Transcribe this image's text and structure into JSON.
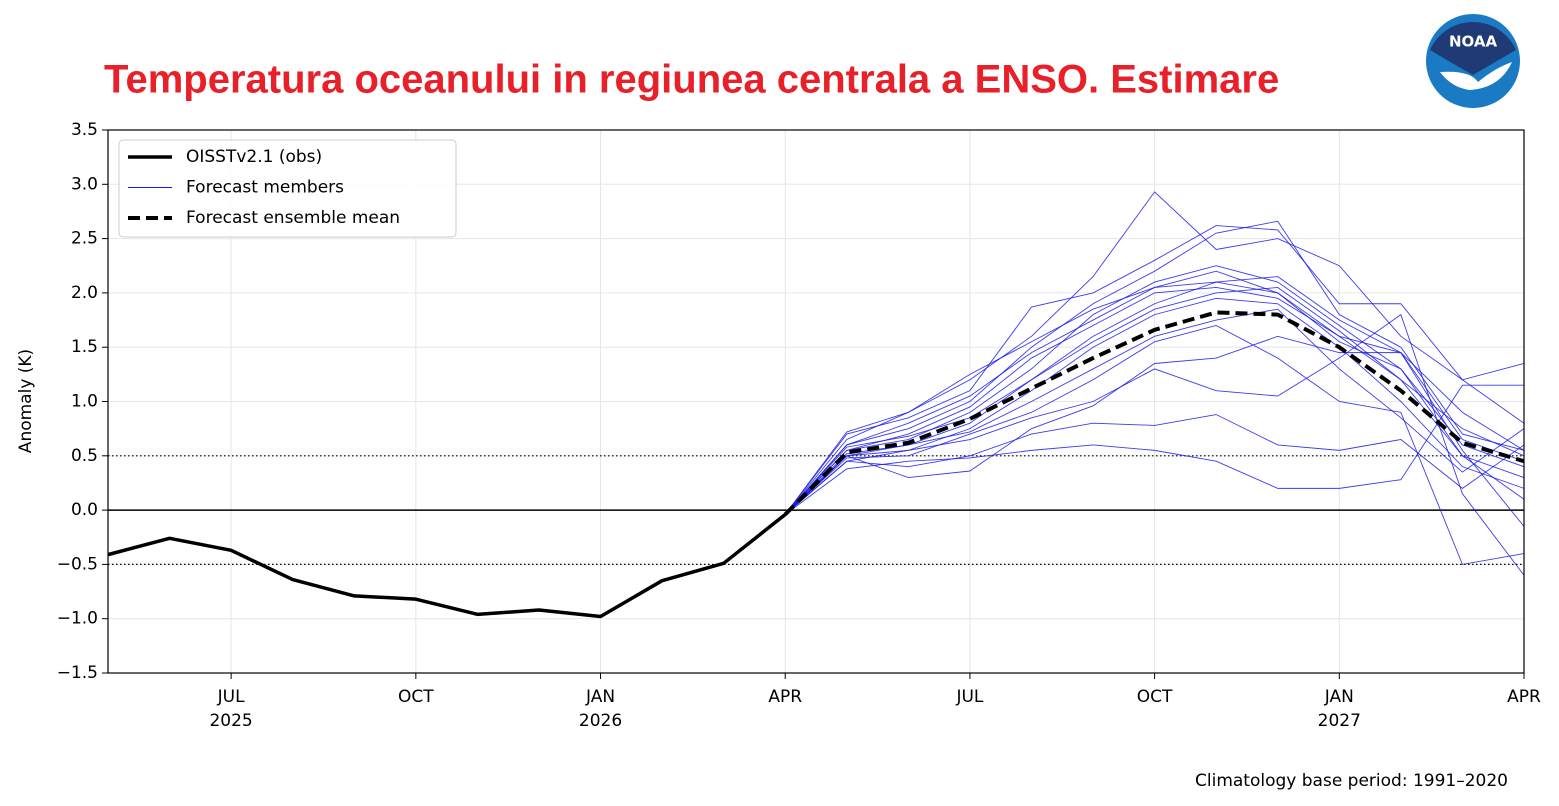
{
  "chart_data": {
    "type": "line",
    "title": "Temperatura oceanului in regiunea centrala a ENSO. Estimare",
    "ylabel": "Anomaly (K)",
    "note": "Climatology base period: 1991–2020",
    "logo_text": "NOAA",
    "categories": [
      null,
      null,
      "JUL\n2025",
      null,
      null,
      "OCT",
      null,
      null,
      "JAN\n2026",
      null,
      null,
      "APR",
      null,
      null,
      "JUL",
      null,
      null,
      "OCT",
      null,
      null,
      "JAN\n2027",
      null,
      null,
      "APR"
    ],
    "ylim": [
      -1.5,
      3.5
    ],
    "yticks": [
      {
        "value": -1.5,
        "label": "−1.5"
      },
      {
        "value": -1.0,
        "label": "−1.0"
      },
      {
        "value": -0.5,
        "label": "−0.5"
      },
      {
        "value": 0,
        "label": "0.0"
      },
      0.5,
      {
        "value": 1.0,
        "label": "1.0"
      },
      1.5,
      {
        "value": 2.0,
        "label": "2.0"
      },
      2.5,
      {
        "value": 3.0,
        "label": "3.0"
      },
      3.5
    ],
    "grid": true,
    "legend": "upper left",
    "reference_lines": [
      {
        "value": 0,
        "style": "solid"
      },
      {
        "value": 0.5,
        "style": "dotted"
      },
      {
        "value": -0.5,
        "style": "dotted"
      }
    ],
    "series": [
      {
        "name": "OISSTv2.1 (obs)",
        "color": "#000000",
        "style": "solid",
        "width": 3.5,
        "values": [
          -0.41,
          -0.26,
          -0.37,
          -0.64,
          -0.79,
          -0.82,
          -0.96,
          -0.92,
          -0.98,
          -0.65,
          -0.49,
          -0.04,
          null,
          null,
          null,
          null,
          null,
          null,
          null,
          null,
          null,
          null,
          null,
          null
        ]
      },
      {
        "name": "Forecast ensemble mean",
        "color": "#000000",
        "style": "dashed",
        "width": 4,
        "values": [
          null,
          null,
          null,
          null,
          null,
          null,
          null,
          null,
          null,
          null,
          null,
          -0.04,
          0.53,
          0.62,
          0.84,
          1.12,
          1.4,
          1.66,
          1.82,
          1.8,
          1.5,
          1.1,
          0.62,
          0.45
        ]
      }
    ],
    "members": {
      "name": "Forecast members",
      "color": "#1a1ae6",
      "values": [
        [
          null,
          null,
          null,
          null,
          null,
          null,
          null,
          null,
          null,
          null,
          null,
          -0.04,
          0.72,
          0.9,
          1.2,
          1.6,
          2.15,
          2.93,
          2.4,
          2.5,
          2.25,
          1.6,
          1.2,
          1.35
        ],
        [
          null,
          null,
          null,
          null,
          null,
          null,
          null,
          null,
          null,
          null,
          null,
          -0.04,
          0.7,
          0.85,
          1.1,
          1.87,
          2.0,
          2.3,
          2.62,
          2.58,
          1.9,
          1.9,
          1.2,
          0.8
        ],
        [
          null,
          null,
          null,
          null,
          null,
          null,
          null,
          null,
          null,
          null,
          null,
          -0.04,
          0.6,
          0.75,
          1.0,
          1.5,
          1.9,
          2.2,
          2.55,
          2.66,
          1.8,
          1.5,
          0.7,
          0.55
        ],
        [
          null,
          null,
          null,
          null,
          null,
          null,
          null,
          null,
          null,
          null,
          null,
          -0.04,
          0.55,
          0.65,
          0.9,
          1.3,
          1.8,
          2.1,
          2.25,
          2.1,
          1.7,
          1.3,
          0.6,
          0.4
        ],
        [
          null,
          null,
          null,
          null,
          null,
          null,
          null,
          null,
          null,
          null,
          null,
          -0.04,
          0.5,
          0.6,
          0.8,
          1.2,
          1.6,
          1.9,
          2.1,
          2.0,
          1.6,
          1.2,
          0.5,
          0.3
        ],
        [
          null,
          null,
          null,
          null,
          null,
          null,
          null,
          null,
          null,
          null,
          null,
          -0.04,
          0.45,
          0.55,
          0.75,
          1.1,
          1.5,
          1.8,
          1.95,
          1.9,
          1.5,
          1.0,
          0.4,
          0.2
        ],
        [
          null,
          null,
          null,
          null,
          null,
          null,
          null,
          null,
          null,
          null,
          null,
          -0.04,
          0.5,
          0.3,
          0.36,
          0.75,
          0.96,
          1.35,
          1.4,
          1.6,
          1.45,
          1.45,
          0.55,
          -0.15
        ],
        [
          null,
          null,
          null,
          null,
          null,
          null,
          null,
          null,
          null,
          null,
          null,
          -0.04,
          0.45,
          0.4,
          0.5,
          0.7,
          0.8,
          0.78,
          0.88,
          0.6,
          0.55,
          0.65,
          0.2,
          0.6
        ],
        [
          null,
          null,
          null,
          null,
          null,
          null,
          null,
          null,
          null,
          null,
          null,
          -0.04,
          0.38,
          0.45,
          0.48,
          0.55,
          0.6,
          0.55,
          0.45,
          0.2,
          0.2,
          0.28,
          1.15,
          1.15
        ],
        [
          null,
          null,
          null,
          null,
          null,
          null,
          null,
          null,
          null,
          null,
          null,
          -0.04,
          0.55,
          0.7,
          0.95,
          1.4,
          1.7,
          2.0,
          2.05,
          1.95,
          1.6,
          1.45,
          0.65,
          0.45
        ],
        [
          null,
          null,
          null,
          null,
          null,
          null,
          null,
          null,
          null,
          null,
          null,
          -0.04,
          0.6,
          0.8,
          1.05,
          1.45,
          1.75,
          2.05,
          2.2,
          2.0,
          1.55,
          1.3,
          0.5,
          0.1
        ],
        [
          null,
          null,
          null,
          null,
          null,
          null,
          null,
          null,
          null,
          null,
          null,
          -0.04,
          0.5,
          0.55,
          0.65,
          0.85,
          1.0,
          1.3,
          1.1,
          1.05,
          1.4,
          1.8,
          0.15,
          -0.6
        ],
        [
          null,
          null,
          null,
          null,
          null,
          null,
          null,
          null,
          null,
          null,
          null,
          -0.04,
          0.48,
          0.5,
          0.7,
          0.9,
          1.2,
          1.55,
          1.7,
          1.4,
          1.0,
          0.9,
          -0.5,
          -0.4
        ],
        [
          null,
          null,
          null,
          null,
          null,
          null,
          null,
          null,
          null,
          null,
          null,
          -0.04,
          0.65,
          0.9,
          1.25,
          1.55,
          1.85,
          2.05,
          2.1,
          2.15,
          1.75,
          1.45,
          0.9,
          0.55
        ],
        [
          null,
          null,
          null,
          null,
          null,
          null,
          null,
          null,
          null,
          null,
          null,
          -0.04,
          0.52,
          0.6,
          0.72,
          1.0,
          1.3,
          1.6,
          1.75,
          1.85,
          1.3,
          0.85,
          0.35,
          0.75
        ],
        [
          null,
          null,
          null,
          null,
          null,
          null,
          null,
          null,
          null,
          null,
          null,
          -0.04,
          0.58,
          0.68,
          0.85,
          1.2,
          1.55,
          1.85,
          2.0,
          2.05,
          1.65,
          1.2,
          0.75,
          0.5
        ]
      ]
    }
  }
}
